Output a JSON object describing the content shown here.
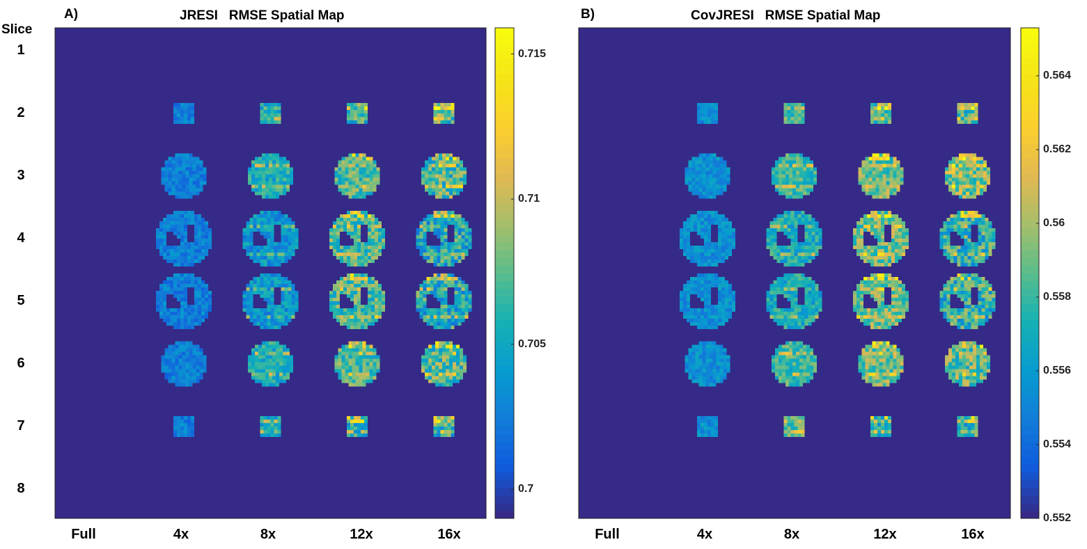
{
  "chart_data": [
    {
      "type": "heatmap",
      "panel_label": "A)",
      "title": "JRESI   RMSE Spatial Map",
      "ylabel": "Slice",
      "row_labels": [
        "1",
        "2",
        "3",
        "4",
        "5",
        "6",
        "7",
        "8"
      ],
      "col_labels": [
        "Full",
        "4x",
        "8x",
        "12x",
        "16x"
      ],
      "colormap": "parula",
      "colorbar": {
        "min": 0.699,
        "max": 0.7159,
        "ticks": [
          0.7,
          0.705,
          0.71,
          0.715
        ],
        "tick_labels": [
          "0.7",
          "0.705",
          "0.71",
          "0.715"
        ]
      },
      "background_value": 0.699,
      "approx_mean_values": [
        [
          null,
          null,
          null,
          null,
          null
        ],
        [
          null,
          0.7025,
          0.7055,
          0.706,
          0.707
        ],
        [
          null,
          0.7025,
          0.7055,
          0.707,
          0.707
        ],
        [
          null,
          0.7025,
          0.704,
          0.707,
          0.7055
        ],
        [
          null,
          0.7025,
          0.704,
          0.707,
          0.7055
        ],
        [
          null,
          0.7025,
          0.7055,
          0.707,
          0.707
        ],
        [
          null,
          0.7025,
          0.7055,
          0.7055,
          0.706
        ],
        [
          null,
          null,
          null,
          null,
          null
        ]
      ]
    },
    {
      "type": "heatmap",
      "panel_label": "B)",
      "title": "CovJRESI   RMSE Spatial Map",
      "ylabel": "",
      "row_labels": [],
      "col_labels": [
        "Full",
        "4x",
        "8x",
        "12x",
        "16x"
      ],
      "colormap": "parula",
      "colorbar": {
        "min": 0.552,
        "max": 0.5653,
        "ticks": [
          0.552,
          0.554,
          0.556,
          0.558,
          0.56,
          0.562,
          0.564
        ],
        "tick_labels": [
          "0.552",
          "0.554",
          "0.556",
          "0.558",
          "0.56",
          "0.562",
          "0.564"
        ]
      },
      "background_value": 0.552,
      "approx_mean_values": [
        [
          null,
          null,
          null,
          null,
          null
        ],
        [
          null,
          0.5555,
          0.558,
          0.5585,
          0.5585
        ],
        [
          null,
          0.5555,
          0.558,
          0.559,
          0.5595
        ],
        [
          null,
          0.5555,
          0.557,
          0.559,
          0.5575
        ],
        [
          null,
          0.5555,
          0.557,
          0.559,
          0.5575
        ],
        [
          null,
          0.5555,
          0.558,
          0.559,
          0.5585
        ],
        [
          null,
          0.5555,
          0.5585,
          0.5575,
          0.5575
        ],
        [
          null,
          null,
          null,
          null,
          null
        ]
      ]
    }
  ]
}
